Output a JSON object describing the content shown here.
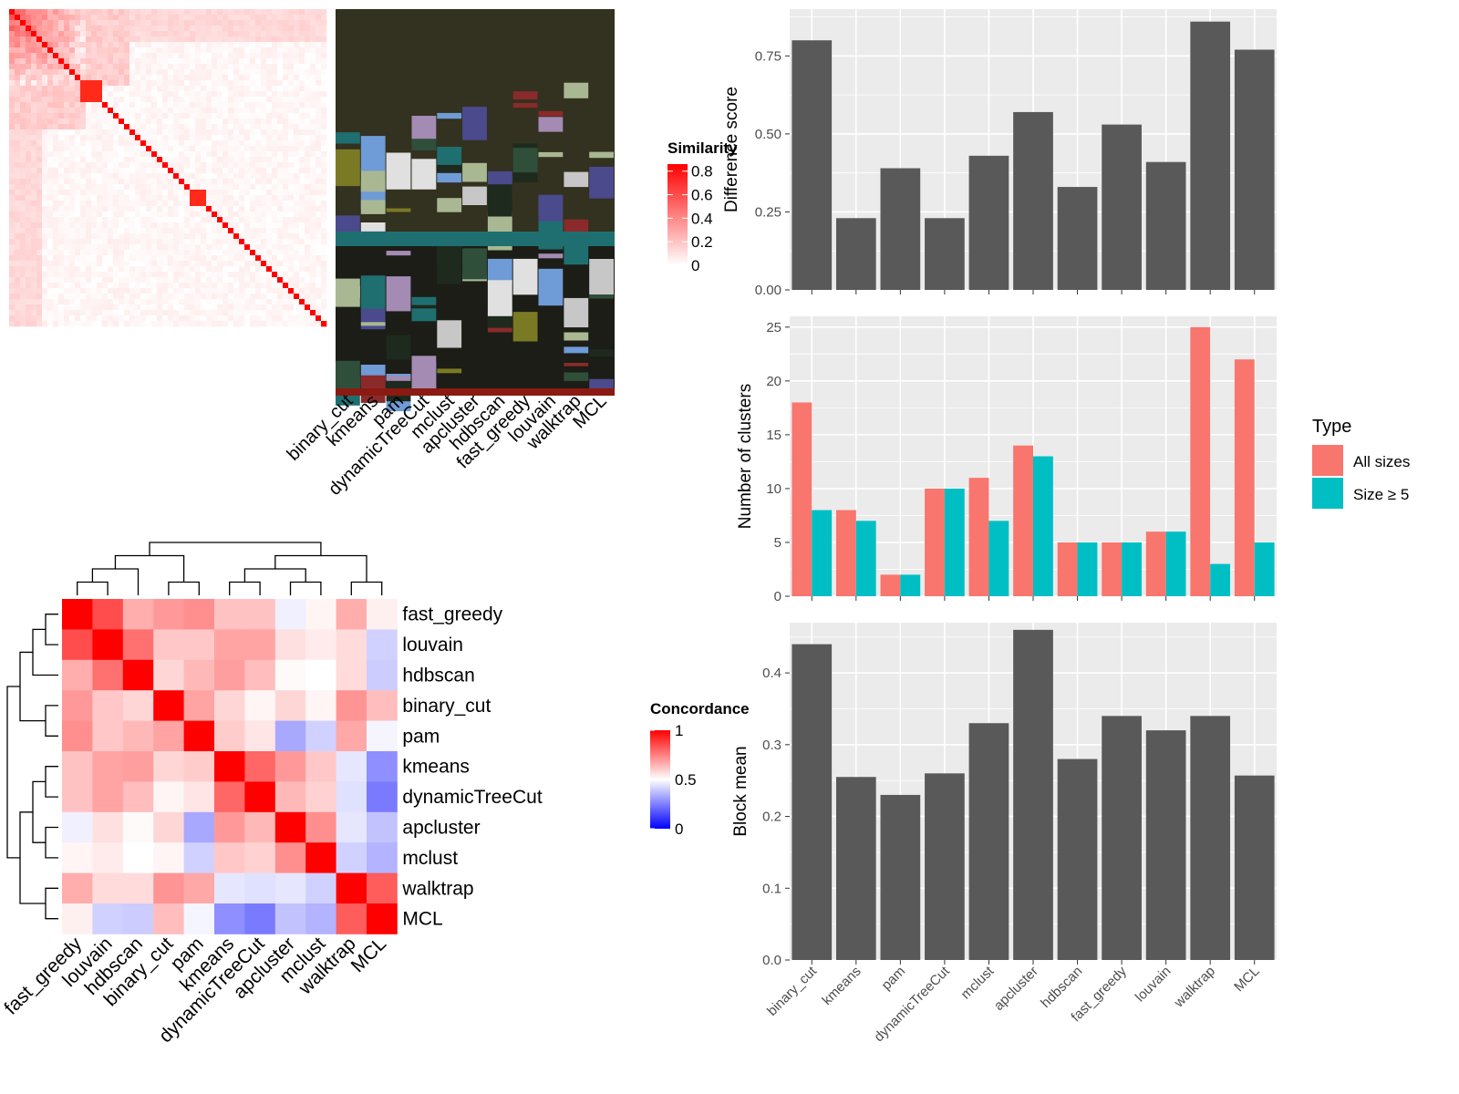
{
  "chart_data": [
    {
      "type": "heatmap",
      "panel": "similarity-matrix-with-cluster-annotations",
      "legend_title": "Similarity",
      "legend_ticks": [
        "0.8",
        "0.6",
        "0.4",
        "0.2",
        "0"
      ],
      "legend_tick_values": [
        0.8,
        0.6,
        0.4,
        0.2,
        0
      ],
      "annotation_columns": [
        "binary_cut",
        "kmeans",
        "pam",
        "dynamicTreeCut",
        "mclust",
        "apcluster",
        "hdbscan",
        "fast_greedy",
        "louvain",
        "walktrap",
        "MCL"
      ],
      "colors": {
        "high": "#ff0000",
        "low": "#ffffff",
        "annotation_background": "#33311f"
      }
    },
    {
      "type": "heatmap",
      "panel": "method-concordance",
      "legend_title": "Concordance",
      "legend_ticks": [
        "1",
        "0.5",
        "0"
      ],
      "legend_tick_values": [
        1,
        0.5,
        0
      ],
      "rows": [
        "fast_greedy",
        "louvain",
        "hdbscan",
        "binary_cut",
        "pam",
        "kmeans",
        "dynamicTreeCut",
        "apcluster",
        "mclust",
        "walktrap",
        "MCL"
      ],
      "columns": [
        "fast_greedy",
        "louvain",
        "hdbscan",
        "binary_cut",
        "pam",
        "kmeans",
        "dynamicTreeCut",
        "apcluster",
        "mclust",
        "walktrap",
        "MCL"
      ],
      "values": [
        [
          1.0,
          0.85,
          0.66,
          0.7,
          0.72,
          0.62,
          0.62,
          0.47,
          0.52,
          0.66,
          0.53
        ],
        [
          0.85,
          1.0,
          0.78,
          0.61,
          0.61,
          0.68,
          0.68,
          0.56,
          0.54,
          0.57,
          0.41
        ],
        [
          0.66,
          0.78,
          1.0,
          0.58,
          0.64,
          0.69,
          0.63,
          0.51,
          0.5,
          0.57,
          0.4
        ],
        [
          0.7,
          0.61,
          0.58,
          1.0,
          0.68,
          0.58,
          0.52,
          0.58,
          0.52,
          0.71,
          0.63
        ],
        [
          0.72,
          0.61,
          0.64,
          0.68,
          1.0,
          0.6,
          0.55,
          0.33,
          0.41,
          0.67,
          0.48
        ],
        [
          0.62,
          0.68,
          0.69,
          0.58,
          0.6,
          1.0,
          0.8,
          0.7,
          0.61,
          0.45,
          0.28
        ],
        [
          0.62,
          0.68,
          0.63,
          0.52,
          0.55,
          0.8,
          1.0,
          0.64,
          0.59,
          0.44,
          0.24
        ],
        [
          0.47,
          0.56,
          0.51,
          0.58,
          0.33,
          0.7,
          0.64,
          1.0,
          0.72,
          0.45,
          0.38
        ],
        [
          0.52,
          0.54,
          0.5,
          0.52,
          0.41,
          0.61,
          0.59,
          0.72,
          1.0,
          0.41,
          0.35
        ],
        [
          0.66,
          0.57,
          0.57,
          0.71,
          0.67,
          0.45,
          0.44,
          0.45,
          0.41,
          1.0,
          0.82
        ],
        [
          0.53,
          0.41,
          0.4,
          0.63,
          0.48,
          0.28,
          0.24,
          0.38,
          0.35,
          0.82,
          1.0
        ]
      ],
      "colors": {
        "high": "#ff0000",
        "mid": "#ffffff",
        "low": "#0000ff"
      }
    },
    {
      "type": "bar",
      "panel": "difference-score",
      "categories": [
        "binary_cut",
        "kmeans",
        "pam",
        "dynamicTreeCut",
        "mclust",
        "apcluster",
        "hdbscan",
        "fast_greedy",
        "louvain",
        "walktrap",
        "MCL"
      ],
      "values": [
        0.8,
        0.23,
        0.39,
        0.23,
        0.43,
        0.57,
        0.33,
        0.53,
        0.41,
        0.86,
        0.77
      ],
      "ylabel": "Difference score",
      "ylim": [
        0,
        0.9
      ],
      "yticks": [
        0.0,
        0.25,
        0.5,
        0.75
      ],
      "ytick_labels": [
        "0.00",
        "0.25",
        "0.50",
        "0.75"
      ],
      "grid": true,
      "bar_color": "#595959"
    },
    {
      "type": "bar",
      "panel": "number-of-clusters",
      "categories": [
        "binary_cut",
        "kmeans",
        "pam",
        "dynamicTreeCut",
        "mclust",
        "apcluster",
        "hdbscan",
        "fast_greedy",
        "louvain",
        "walktrap",
        "MCL"
      ],
      "series": [
        {
          "name": "All sizes",
          "values": [
            18,
            8,
            2,
            10,
            11,
            14,
            5,
            5,
            6,
            25,
            22
          ],
          "color": "#f8766d"
        },
        {
          "name": "Size ≥ 5",
          "values": [
            8,
            7,
            2,
            10,
            7,
            13,
            5,
            5,
            6,
            3,
            5
          ],
          "color": "#00bfc4"
        }
      ],
      "ylabel": "Number of clusters",
      "ylim": [
        0,
        26
      ],
      "yticks": [
        0,
        5,
        10,
        15,
        20,
        25
      ],
      "ytick_labels": [
        "0",
        "5",
        "10",
        "15",
        "20",
        "25"
      ],
      "legend_title": "Type",
      "legend_position": "right",
      "grid": true
    },
    {
      "type": "bar",
      "panel": "block-mean",
      "categories": [
        "binary_cut",
        "kmeans",
        "pam",
        "dynamicTreeCut",
        "mclust",
        "apcluster",
        "hdbscan",
        "fast_greedy",
        "louvain",
        "walktrap",
        "MCL"
      ],
      "values": [
        0.44,
        0.255,
        0.23,
        0.26,
        0.33,
        0.46,
        0.28,
        0.34,
        0.32,
        0.34,
        0.257
      ],
      "ylabel": "Block mean",
      "ylim": [
        0,
        0.47
      ],
      "yticks": [
        0.0,
        0.1,
        0.2,
        0.3,
        0.4
      ],
      "ytick_labels": [
        "0.0",
        "0.1",
        "0.2",
        "0.3",
        "0.4"
      ],
      "grid": true,
      "bar_color": "#595959"
    }
  ]
}
